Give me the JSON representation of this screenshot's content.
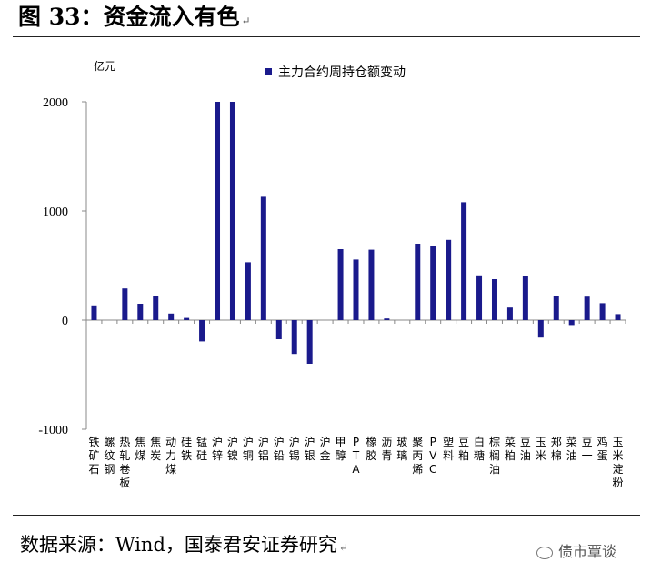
{
  "figure_title": "图 33：资金流入有色",
  "source_text": "数据来源：Wind，国泰君安证券研究",
  "watermark_text": "债市覃谈",
  "watermark_icon": "wechat-icon",
  "colors": {
    "bar": "#1a1a8c",
    "axis": "#888888",
    "text": "#000000"
  },
  "chart_data": {
    "type": "bar",
    "ylabel": "亿元",
    "ylim": [
      -1000,
      2000
    ],
    "yticks": [
      2000,
      1000,
      0,
      -1000
    ],
    "grid": false,
    "legend": {
      "position": "top-center",
      "entries": [
        "主力合约周持仓额变动"
      ]
    },
    "categories": [
      "铁矿石",
      "螺纹钢",
      "热轧卷板",
      "焦煤",
      "焦炭",
      "动力煤",
      "硅铁",
      "锰硅",
      "沪锌",
      "沪镍",
      "沪铜",
      "沪铝",
      "沪铅",
      "沪锡",
      "沪银",
      "沪金",
      "甲醇",
      "PTA",
      "橡胶",
      "沥青",
      "玻璃",
      "聚丙烯",
      "PVC",
      "塑料",
      "豆粕",
      "白糖",
      "棕榈油",
      "菜粕",
      "豆油",
      "玉米",
      "郑棉",
      "菜油",
      "豆一",
      "鸡蛋",
      "玉米淀粉"
    ],
    "series": [
      {
        "name": "主力合约周持仓额变动",
        "values": [
          135,
          0,
          290,
          150,
          220,
          60,
          20,
          -195,
          2000,
          2000,
          530,
          1130,
          -175,
          -310,
          -400,
          0,
          650,
          555,
          645,
          15,
          0,
          700,
          675,
          735,
          1080,
          410,
          375,
          115,
          400,
          -160,
          225,
          -45,
          215,
          155,
          55
        ]
      }
    ]
  }
}
